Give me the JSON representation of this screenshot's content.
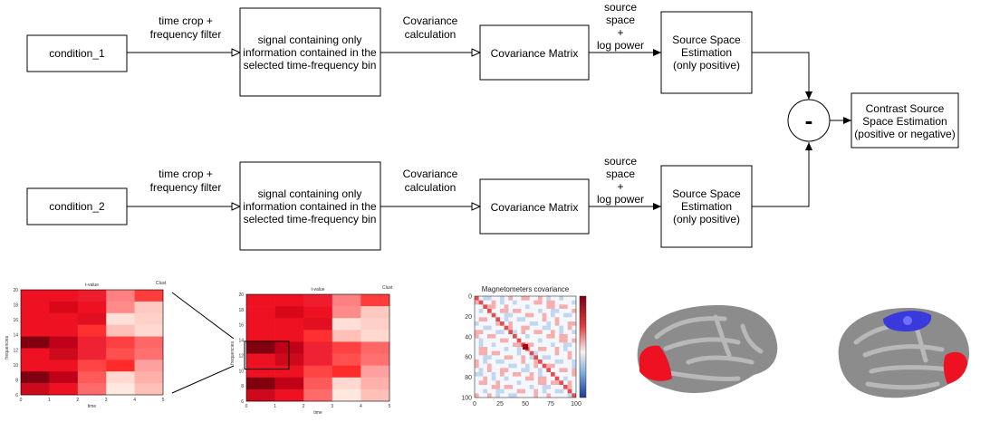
{
  "nodes": {
    "condition_1": "condition_1",
    "condition_2": "condition_2",
    "signal": [
      "signal containing only",
      "information contained in the",
      "selected time-frequency bin"
    ],
    "cov_matrix": "Covariance Matrix",
    "source_est": [
      "Source Space",
      "Estimation",
      "(only positive)"
    ],
    "minus": "-",
    "contrast": [
      "Contrast Source",
      "Space Estimation",
      "(positive or negative)"
    ]
  },
  "edge_labels": {
    "time_crop": [
      "time crop +",
      "frequency filter"
    ],
    "cov_calc": [
      "Covariance",
      "calculation"
    ],
    "source_log": [
      "source",
      "space",
      "+",
      "log power"
    ]
  },
  "thumbs": {
    "tvalue_title": "t-value",
    "cluster_label": "Clust",
    "y_axis_label": "frequencies",
    "x_axis_label": "time",
    "tf_yticks": [
      "20",
      "18",
      "16",
      "14",
      "12",
      "10",
      "8",
      "6"
    ],
    "tf_xticks": [
      "0",
      "1",
      "2",
      "3",
      "4",
      "5"
    ],
    "cov_title": "Magnetometers covariance",
    "cov_yticks": [
      "0",
      "20",
      "40",
      "60",
      "80",
      "100"
    ],
    "cov_xticks": [
      "0",
      "25",
      "50",
      "75",
      "100"
    ]
  },
  "colors": {
    "tf_cells": [
      [
        "#ee1122",
        "#ee1122",
        "#ee1d2d",
        "#ff8080",
        "#ff3c3c"
      ],
      [
        "#ee1122",
        "#d80818",
        "#ee1122",
        "#ff8a8a",
        "#ffc8c0"
      ],
      [
        "#ee1122",
        "#ee1122",
        "#e01020",
        "#ffe0d8",
        "#ffd0c8"
      ],
      [
        "#ee1122",
        "#ee1122",
        "#ff3030",
        "#ffc0b8",
        "#ffd8d0"
      ],
      [
        "#800010",
        "#c00018",
        "#ee2233",
        "#ff4040",
        "#ff6666"
      ],
      [
        "#ee1122",
        "#cc0a1c",
        "#ee2233",
        "#ff5050",
        "#ff7070"
      ],
      [
        "#ee1122",
        "#ee1122",
        "#ff4444",
        "#ff2b2b",
        "#ffa0a0"
      ],
      [
        "#800010",
        "#c00018",
        "#ff5a5a",
        "#ffd8d0",
        "#ffb0a8"
      ],
      [
        "#cc0a1c",
        "#ee1122",
        "#ff6a6a",
        "#ffe8e0",
        "#ffc0b8"
      ]
    ],
    "accent_red": "#ee1122",
    "cov_blue": "#4a7fc0",
    "brain_gray": "#8c8c8c"
  }
}
